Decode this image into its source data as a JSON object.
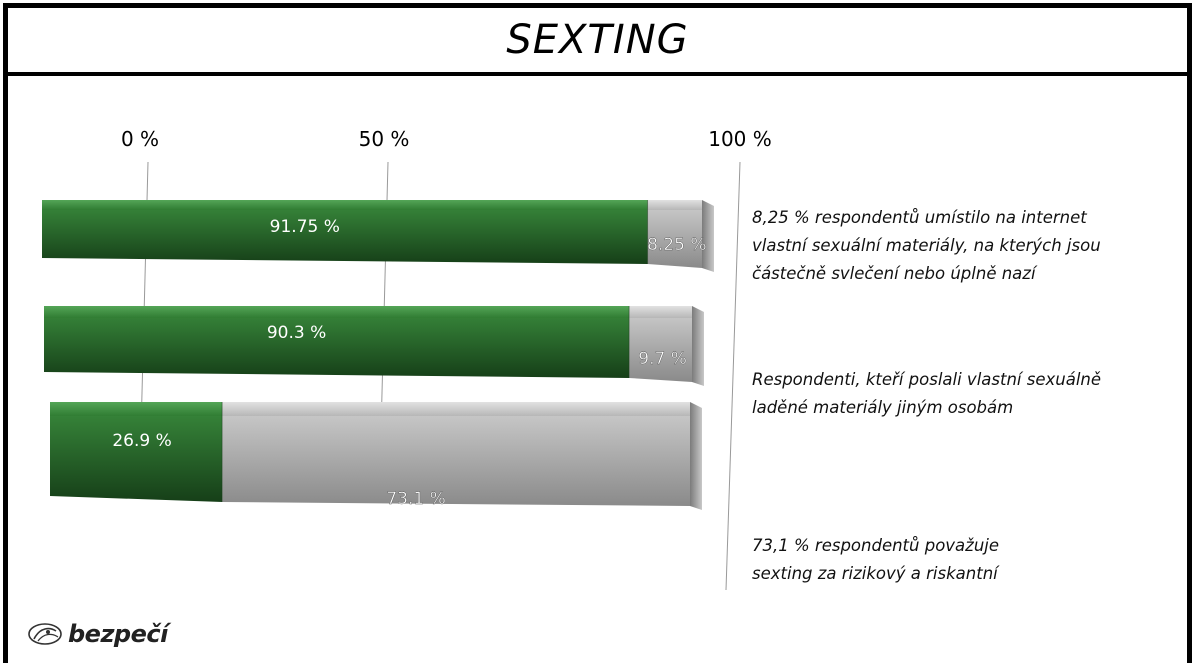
{
  "title": "SEXTING",
  "chart_data": {
    "type": "bar",
    "orientation": "horizontal",
    "stacked": true,
    "axis_ticks": [
      "0 %",
      "50 %",
      "100 %"
    ],
    "xlim": [
      0,
      100
    ],
    "bars": [
      {
        "yes": 8.25,
        "no": 91.75,
        "yes_label": "8.25 %",
        "no_label": "91.75 %"
      },
      {
        "yes": 9.7,
        "no": 90.3,
        "yes_label": "9.7 %",
        "no_label": "90.3 %"
      },
      {
        "yes": 73.1,
        "no": 26.9,
        "yes_label": "73.1 %",
        "no_label": "26.9 %"
      }
    ],
    "annotations": [
      [
        "8,25 % respondentů umístilo na internet",
        "vlastní sexuální materiály, na kterých jsou",
        "částečně svlečení nebo úplně nazí"
      ],
      [
        "Respondenti, kteří poslali vlastní sexuálně",
        "laděné materiály jiným osobám"
      ],
      [
        "73,1 % respondentů považuje",
        "sexting za rizikový a riskantní"
      ]
    ],
    "colors": {
      "green": "#2f7d32",
      "green_dark": "#1b4f1d",
      "silver": "#b9b9b9",
      "silver_dark": "#7d7d7d"
    }
  },
  "logo": {
    "text": "bezpečí"
  }
}
